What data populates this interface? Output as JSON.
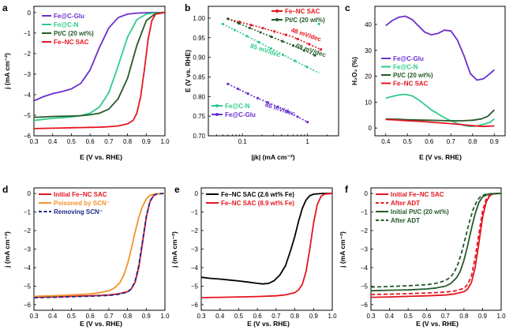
{
  "colors": {
    "purple": "#6a2fd0",
    "green": "#2ecb8a",
    "darkgreen": "#245a2a",
    "red": "#e5151f",
    "orange": "#f2922a",
    "navy": "#1f2a8a",
    "black": "#000000"
  },
  "chart_data": [
    {
      "id": "a",
      "letter": "a",
      "type": "line",
      "xlabel": "E (V vs. RHE)",
      "ylabel": "j (mA cm⁻²)",
      "xlim": [
        0.3,
        1.0
      ],
      "ylim": [
        -6,
        0.3
      ],
      "xticks": [
        0.3,
        0.4,
        0.5,
        0.6,
        0.7,
        0.8,
        0.9,
        1.0
      ],
      "xticklabels": [
        "0.3",
        "0.4",
        "0.5",
        "0.6",
        "0.7",
        "0.8",
        "0.9",
        "1.0"
      ],
      "yticks": [
        0,
        -1,
        -2,
        -3,
        -4,
        -5,
        -6
      ],
      "yticklabels": [
        "0",
        "−1",
        "−2",
        "−3",
        "−4",
        "−5",
        "−6"
      ],
      "legend_position": "top-left",
      "series": [
        {
          "name": "Fe@C-Glu",
          "color": "#6a2fd0",
          "dash": "solid",
          "x": [
            0.3,
            0.35,
            0.4,
            0.45,
            0.5,
            0.55,
            0.6,
            0.65,
            0.7,
            0.75,
            0.8,
            0.85,
            0.9,
            0.95,
            1.0
          ],
          "y": [
            -4.3,
            -4.1,
            -3.95,
            -3.85,
            -3.72,
            -3.45,
            -2.8,
            -1.7,
            -0.75,
            -0.25,
            -0.08,
            -0.03,
            -0.01,
            0.0,
            0.0
          ]
        },
        {
          "name": "Fe@C-N",
          "color": "#2ecb8a",
          "dash": "solid",
          "x": [
            0.3,
            0.35,
            0.4,
            0.45,
            0.5,
            0.55,
            0.6,
            0.65,
            0.7,
            0.75,
            0.8,
            0.85,
            0.9,
            0.95,
            1.0
          ],
          "y": [
            -5.25,
            -5.2,
            -5.15,
            -5.12,
            -5.08,
            -5.02,
            -4.9,
            -4.6,
            -3.9,
            -2.6,
            -1.2,
            -0.35,
            -0.08,
            -0.01,
            0.0
          ]
        },
        {
          "name": "Pt/C (20 wt%)",
          "color": "#245a2a",
          "dash": "solid",
          "x": [
            0.3,
            0.35,
            0.4,
            0.45,
            0.5,
            0.55,
            0.6,
            0.65,
            0.7,
            0.75,
            0.8,
            0.85,
            0.9,
            0.95,
            1.0
          ],
          "y": [
            -5.1,
            -5.08,
            -5.06,
            -5.05,
            -5.04,
            -5.02,
            -4.98,
            -4.9,
            -4.7,
            -4.2,
            -3.2,
            -1.6,
            -0.4,
            -0.05,
            0.0
          ]
        },
        {
          "name": "Fe–NC SAC",
          "color": "#e5151f",
          "dash": "solid",
          "x": [
            0.3,
            0.35,
            0.4,
            0.45,
            0.5,
            0.55,
            0.6,
            0.65,
            0.7,
            0.75,
            0.8,
            0.83,
            0.85,
            0.87,
            0.89,
            0.91,
            0.93,
            0.95,
            1.0
          ],
          "y": [
            -5.65,
            -5.64,
            -5.63,
            -5.62,
            -5.61,
            -5.6,
            -5.59,
            -5.58,
            -5.56,
            -5.52,
            -5.42,
            -5.25,
            -4.9,
            -4.1,
            -2.8,
            -1.3,
            -0.4,
            -0.08,
            0.0
          ]
        }
      ]
    },
    {
      "id": "b",
      "letter": "b",
      "type": "line",
      "xlabel": "|jk| (mA cm⁻²)",
      "ylabel": "E (V vs. RHE)",
      "xscale": "log",
      "xlim": [
        0.03,
        3
      ],
      "ylim": [
        0.7,
        1.03
      ],
      "xticks": [
        0.1,
        1
      ],
      "xticklabels": [
        "0.1",
        "1"
      ],
      "yticks": [
        0.7,
        0.75,
        0.8,
        0.85,
        0.9,
        0.95,
        1.0
      ],
      "yticklabels": [
        "0.70",
        "0.75",
        "0.80",
        "0.85",
        "0.90",
        "0.95",
        "1.00"
      ],
      "series": [
        {
          "name": "Fe–NC SAC",
          "color": "#e5151f",
          "x": [
            0.06,
            0.2,
            0.6,
            1.6
          ],
          "y": [
            0.998,
            0.975,
            0.952,
            0.92
          ]
        },
        {
          "name": "Pt/C (20 wt%)",
          "color": "#245a2a",
          "x": [
            0.06,
            0.2,
            0.6,
            1.3
          ],
          "y": [
            0.998,
            0.962,
            0.93,
            0.905
          ]
        },
        {
          "name": "Fe@C-N",
          "color": "#2ecb8a",
          "x": [
            0.05,
            0.15,
            0.5,
            1.5
          ],
          "y": [
            0.985,
            0.945,
            0.9,
            0.86
          ]
        },
        {
          "name": "Fe@C-Glu",
          "color": "#6a2fd0",
          "x": [
            0.06,
            0.15,
            0.4,
            1.0
          ],
          "y": [
            0.832,
            0.8,
            0.77,
            0.735
          ]
        }
      ],
      "annotations": [
        {
          "text": "48 mV/dec",
          "color": "#e5151f",
          "x": 0.55,
          "y": 0.965
        },
        {
          "text": "69 mV/dec",
          "color": "#245a2a",
          "x": 0.65,
          "y": 0.925
        },
        {
          "text": "85 mV/dec",
          "color": "#2ecb8a",
          "x": 0.13,
          "y": 0.925
        },
        {
          "text": "86 mV/dec",
          "color": "#6a2fd0",
          "x": 0.22,
          "y": 0.775
        }
      ],
      "legends": [
        {
          "position": "top-right",
          "items": [
            {
              "name": "Fe–NC SAC",
              "color": "#e5151f"
            },
            {
              "name": "Pt/C (20 wt%)",
              "color": "#245a2a"
            }
          ]
        },
        {
          "position": "bottom-left",
          "items": [
            {
              "name": "Fe@C-N",
              "color": "#2ecb8a"
            },
            {
              "name": "Fe@C-Glu",
              "color": "#6a2fd0"
            }
          ]
        }
      ]
    },
    {
      "id": "c",
      "letter": "c",
      "type": "line",
      "xlabel": "E (V vs. RHE)",
      "ylabel": "H₂O₂ (%)",
      "xlim": [
        0.35,
        0.95
      ],
      "ylim": [
        -3,
        47
      ],
      "xticks": [
        0.4,
        0.5,
        0.6,
        0.7,
        0.8,
        0.9
      ],
      "xticklabels": [
        "0.4",
        "0.5",
        "0.6",
        "0.7",
        "0.8",
        "0.9"
      ],
      "yticks": [
        0,
        10,
        20,
        30,
        40
      ],
      "yticklabels": [
        "0",
        "10",
        "20",
        "30",
        "40"
      ],
      "legend_position": "middle-left",
      "series": [
        {
          "name": "Fe@C-Glu",
          "color": "#6a2fd0",
          "x": [
            0.4,
            0.43,
            0.46,
            0.49,
            0.52,
            0.55,
            0.58,
            0.61,
            0.64,
            0.67,
            0.7,
            0.73,
            0.76,
            0.79,
            0.82,
            0.85,
            0.88,
            0.9
          ],
          "y": [
            39.5,
            41.5,
            42.8,
            43.2,
            42,
            39.5,
            37,
            36,
            36.5,
            37.8,
            37.5,
            34,
            28,
            21,
            18.5,
            19,
            21,
            22.5
          ]
        },
        {
          "name": "Fe@C-N",
          "color": "#2ecb8a",
          "x": [
            0.4,
            0.43,
            0.46,
            0.49,
            0.52,
            0.55,
            0.58,
            0.61,
            0.64,
            0.67,
            0.7,
            0.73,
            0.76,
            0.79,
            0.82,
            0.85,
            0.88,
            0.9
          ],
          "y": [
            11.5,
            12.2,
            12.8,
            13,
            12.5,
            11,
            9,
            7,
            5.5,
            4,
            2.8,
            1.8,
            1.0,
            0.6,
            0.8,
            1.4,
            2.2,
            3.5
          ]
        },
        {
          "name": "Pt/C (20 wt%)",
          "color": "#245a2a",
          "x": [
            0.4,
            0.45,
            0.5,
            0.55,
            0.6,
            0.65,
            0.7,
            0.75,
            0.8,
            0.84,
            0.87,
            0.9
          ],
          "y": [
            3.5,
            3.4,
            3.2,
            3.1,
            3.0,
            2.9,
            2.8,
            2.8,
            3.0,
            3.5,
            4.5,
            7.0
          ]
        },
        {
          "name": "Fe–NC SAC",
          "color": "#e5151f",
          "x": [
            0.4,
            0.45,
            0.5,
            0.55,
            0.6,
            0.65,
            0.7,
            0.75,
            0.8,
            0.85,
            0.9
          ],
          "y": [
            3.3,
            3.1,
            2.8,
            2.6,
            2.3,
            2.0,
            1.7,
            1.3,
            0.9,
            0.6,
            0.8
          ]
        }
      ]
    },
    {
      "id": "d",
      "letter": "d",
      "type": "line",
      "xlabel": "E (V vs. RHE)",
      "ylabel": "j (mA cm⁻²)",
      "xlim": [
        0.3,
        1.0
      ],
      "ylim": [
        -6.3,
        0.3
      ],
      "xticks": [
        0.3,
        0.4,
        0.5,
        0.6,
        0.7,
        0.8,
        0.9,
        1.0
      ],
      "xticklabels": [
        "0.3",
        "0.4",
        "0.5",
        "0.6",
        "0.7",
        "0.8",
        "0.9",
        "1.0"
      ],
      "yticks": [
        0,
        -1,
        -2,
        -3,
        -4,
        -5,
        -6
      ],
      "yticklabels": [
        "0",
        "−1",
        "−2",
        "−3",
        "−4",
        "−5",
        "−6"
      ],
      "legend_position": "top-left",
      "series": [
        {
          "name": "Initial Fe–NC SAC",
          "color": "#e5151f",
          "dash": "solid",
          "x": [
            0.3,
            0.4,
            0.5,
            0.6,
            0.7,
            0.75,
            0.8,
            0.82,
            0.84,
            0.86,
            0.88,
            0.9,
            0.92,
            0.94,
            0.96,
            1.0
          ],
          "y": [
            -5.6,
            -5.58,
            -5.55,
            -5.52,
            -5.48,
            -5.42,
            -5.3,
            -5.15,
            -4.8,
            -4.0,
            -2.7,
            -1.3,
            -0.45,
            -0.1,
            -0.02,
            0.0
          ]
        },
        {
          "name": "Poisoned by SCN⁻",
          "color": "#f2922a",
          "dash": "solid",
          "x": [
            0.3,
            0.4,
            0.5,
            0.6,
            0.65,
            0.7,
            0.73,
            0.76,
            0.78,
            0.8,
            0.82,
            0.84,
            0.86,
            0.88,
            0.9,
            0.92,
            0.95,
            1.0
          ],
          "y": [
            -5.55,
            -5.52,
            -5.48,
            -5.42,
            -5.35,
            -5.25,
            -5.1,
            -4.8,
            -4.4,
            -3.8,
            -3.0,
            -2.1,
            -1.3,
            -0.7,
            -0.3,
            -0.1,
            -0.02,
            0.0
          ]
        },
        {
          "name": "Removing SCN⁻",
          "color": "#1f2a8a",
          "dash": "dash",
          "x": [
            0.3,
            0.4,
            0.5,
            0.6,
            0.7,
            0.75,
            0.8,
            0.82,
            0.84,
            0.86,
            0.88,
            0.9,
            0.92,
            0.94,
            0.96,
            1.0
          ],
          "y": [
            -5.62,
            -5.6,
            -5.57,
            -5.54,
            -5.5,
            -5.44,
            -5.32,
            -5.15,
            -4.75,
            -3.9,
            -2.6,
            -1.25,
            -0.42,
            -0.1,
            -0.02,
            0.0
          ]
        }
      ]
    },
    {
      "id": "e",
      "letter": "e",
      "type": "line",
      "xlabel": "E (V vs. RHE)",
      "ylabel": "j (mA cm⁻²)",
      "xlim": [
        0.3,
        1.0
      ],
      "ylim": [
        -6.3,
        0.3
      ],
      "xticks": [
        0.3,
        0.4,
        0.5,
        0.6,
        0.7,
        0.8,
        0.9,
        1.0
      ],
      "xticklabels": [
        "0.3",
        "0.4",
        "0.5",
        "0.6",
        "0.7",
        "0.8",
        "0.9",
        "1.0"
      ],
      "yticks": [
        0,
        -1,
        -2,
        -3,
        -4,
        -5,
        -6
      ],
      "yticklabels": [
        "0",
        "−1",
        "−2",
        "−3",
        "−4",
        "−5",
        "−6"
      ],
      "legend_position": "top-left",
      "series": [
        {
          "name": "Fe–NC SAC (2.6 wt% Fe)",
          "color": "#000000",
          "dash": "solid",
          "x": [
            0.3,
            0.35,
            0.4,
            0.45,
            0.5,
            0.55,
            0.6,
            0.63,
            0.66,
            0.69,
            0.72,
            0.75,
            0.78,
            0.8,
            0.82,
            0.84,
            0.86,
            0.88,
            0.9,
            0.95,
            1.0
          ],
          "y": [
            -4.52,
            -4.58,
            -4.62,
            -4.67,
            -4.72,
            -4.78,
            -4.85,
            -4.88,
            -4.85,
            -4.7,
            -4.4,
            -3.9,
            -3.0,
            -2.3,
            -1.5,
            -0.8,
            -0.35,
            -0.12,
            -0.04,
            0.0,
            0.0
          ]
        },
        {
          "name": "Fe–NC SAC (8.9 wt% Fe)",
          "color": "#e5151f",
          "dash": "solid",
          "x": [
            0.3,
            0.4,
            0.5,
            0.6,
            0.7,
            0.75,
            0.8,
            0.82,
            0.84,
            0.86,
            0.88,
            0.9,
            0.92,
            0.94,
            0.96,
            1.0
          ],
          "y": [
            -5.62,
            -5.6,
            -5.58,
            -5.56,
            -5.52,
            -5.47,
            -5.35,
            -5.2,
            -4.9,
            -4.2,
            -3.0,
            -1.6,
            -0.6,
            -0.15,
            -0.03,
            0.0
          ]
        }
      ]
    },
    {
      "id": "f",
      "letter": "f",
      "type": "line",
      "xlabel": "E (V vs. RHE)",
      "ylabel": "j (mA cm⁻²)",
      "xlim": [
        0.3,
        1.0
      ],
      "ylim": [
        -6.3,
        0.3
      ],
      "xticks": [
        0.3,
        0.4,
        0.5,
        0.6,
        0.7,
        0.8,
        0.9,
        1.0
      ],
      "xticklabels": [
        "0.3",
        "0.4",
        "0.5",
        "0.6",
        "0.7",
        "0.8",
        "0.9",
        "1.0"
      ],
      "yticks": [
        0,
        -1,
        -2,
        -3,
        -4,
        -5,
        -6
      ],
      "yticklabels": [
        "0",
        "−1",
        "−2",
        "−3",
        "−4",
        "−5",
        "−6"
      ],
      "legend_position": "top-left",
      "series": [
        {
          "name": "Initial Fe–NC SAC",
          "color": "#e5151f",
          "dash": "solid",
          "x": [
            0.3,
            0.4,
            0.5,
            0.6,
            0.7,
            0.75,
            0.8,
            0.82,
            0.84,
            0.86,
            0.88,
            0.9,
            0.92,
            0.94,
            0.96,
            1.0
          ],
          "y": [
            -5.6,
            -5.58,
            -5.55,
            -5.52,
            -5.48,
            -5.42,
            -5.3,
            -5.15,
            -4.8,
            -4.0,
            -2.7,
            -1.3,
            -0.45,
            -0.1,
            -0.02,
            0.0
          ]
        },
        {
          "name": "After ADT",
          "color": "#e5151f",
          "dash": "dash",
          "x": [
            0.3,
            0.4,
            0.5,
            0.6,
            0.7,
            0.75,
            0.8,
            0.82,
            0.84,
            0.86,
            0.88,
            0.9,
            0.92,
            0.94,
            0.96,
            1.0
          ],
          "y": [
            -5.45,
            -5.43,
            -5.4,
            -5.37,
            -5.32,
            -5.26,
            -5.12,
            -4.9,
            -4.45,
            -3.5,
            -2.2,
            -0.95,
            -0.3,
            -0.06,
            -0.01,
            0.0
          ]
        },
        {
          "name": "Initial Pt/C (20 wt%)",
          "color": "#245a2a",
          "dash": "solid",
          "x": [
            0.3,
            0.4,
            0.5,
            0.6,
            0.65,
            0.7,
            0.73,
            0.76,
            0.78,
            0.8,
            0.82,
            0.84,
            0.86,
            0.88,
            0.9,
            0.93,
            0.96,
            1.0
          ],
          "y": [
            -5.25,
            -5.22,
            -5.2,
            -5.15,
            -5.1,
            -5.0,
            -4.85,
            -4.55,
            -4.2,
            -3.6,
            -2.8,
            -1.9,
            -1.1,
            -0.5,
            -0.18,
            -0.04,
            -0.01,
            0.0
          ]
        },
        {
          "name": "After ADT",
          "color": "#245a2a",
          "dash": "dash",
          "x": [
            0.3,
            0.4,
            0.5,
            0.6,
            0.65,
            0.7,
            0.73,
            0.75,
            0.77,
            0.79,
            0.81,
            0.83,
            0.85,
            0.87,
            0.89,
            0.92,
            0.95,
            1.0
          ],
          "y": [
            -5.05,
            -5.02,
            -4.98,
            -4.92,
            -4.85,
            -4.7,
            -4.5,
            -4.2,
            -3.75,
            -3.1,
            -2.3,
            -1.5,
            -0.85,
            -0.4,
            -0.15,
            -0.03,
            -0.01,
            0.0
          ]
        }
      ]
    }
  ]
}
